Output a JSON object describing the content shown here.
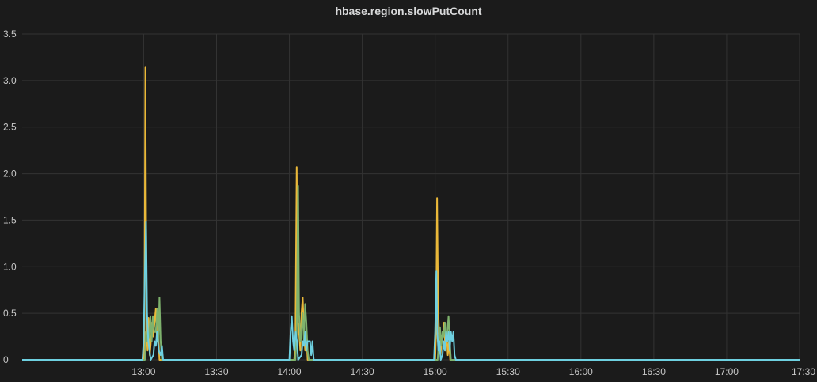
{
  "panel": {
    "title": "hbase.region.slowPutCount"
  },
  "chart_data": {
    "type": "line",
    "title": "hbase.region.slowPutCount",
    "xlabel": "",
    "ylabel": "",
    "x_unit": "minutes of day",
    "xlim": [
      730,
      1050
    ],
    "ylim": [
      0,
      3.5
    ],
    "yticks": [
      0,
      0.5,
      1.0,
      1.5,
      2.0,
      2.5,
      3.0,
      3.5
    ],
    "ytick_labels": [
      "0",
      "0.5",
      "1.0",
      "1.5",
      "2.0",
      "2.5",
      "3.0",
      "3.5"
    ],
    "xticks": [
      780,
      810,
      840,
      870,
      900,
      930,
      960,
      990,
      1020,
      1050
    ],
    "xtick_labels": [
      "13:00",
      "13:30",
      "14:00",
      "14:30",
      "15:00",
      "15:30",
      "16:00",
      "16:30",
      "17:00",
      "17:30"
    ],
    "grid": true,
    "legend": "none",
    "series": [
      {
        "color": "#eab839",
        "points": [
          [
            730,
            0
          ],
          [
            780,
            0
          ],
          [
            780.3,
            0.25
          ],
          [
            780.7,
            3.14
          ],
          [
            781.2,
            0.3
          ],
          [
            781.6,
            0.1
          ],
          [
            782,
            0.45
          ],
          [
            782.5,
            0.05
          ],
          [
            783,
            0.2
          ],
          [
            783.5,
            0.4
          ],
          [
            784,
            0.25
          ],
          [
            784.5,
            0.4
          ],
          [
            785,
            0.55
          ],
          [
            785.5,
            0.2
          ],
          [
            786,
            0.3
          ],
          [
            786.5,
            0
          ],
          [
            842,
            0
          ],
          [
            842.5,
            0.2
          ],
          [
            843,
            2.07
          ],
          [
            843.5,
            0.4
          ],
          [
            844,
            0.3
          ],
          [
            844.5,
            0.1
          ],
          [
            845,
            0.5
          ],
          [
            845.5,
            0.67
          ],
          [
            846,
            0.3
          ],
          [
            846.5,
            0.1
          ],
          [
            847,
            0.3
          ],
          [
            847.5,
            0
          ],
          [
            900,
            0
          ],
          [
            900.4,
            0.3
          ],
          [
            900.8,
            1.74
          ],
          [
            901.2,
            0.6
          ],
          [
            901.7,
            0.2
          ],
          [
            902.2,
            0.05
          ],
          [
            902.7,
            0.2
          ],
          [
            903.2,
            0.25
          ],
          [
            903.7,
            0.4
          ],
          [
            904.2,
            0.1
          ],
          [
            904.7,
            0.3
          ],
          [
            905.2,
            0.05
          ],
          [
            905.7,
            0.2
          ],
          [
            906.2,
            0
          ],
          [
            1050,
            0
          ]
        ]
      },
      {
        "color": "#7eb26d",
        "points": [
          [
            730,
            0
          ],
          [
            780.5,
            0
          ],
          [
            781,
            0.3
          ],
          [
            781.5,
            0.2
          ],
          [
            782.2,
            0.25
          ],
          [
            782.8,
            0.47
          ],
          [
            783.3,
            0.2
          ],
          [
            783.8,
            0.47
          ],
          [
            784.4,
            0.3
          ],
          [
            785,
            0.3
          ],
          [
            785.6,
            0.55
          ],
          [
            786.1,
            0.2
          ],
          [
            786.5,
            0.67
          ],
          [
            787,
            0.2
          ],
          [
            787.5,
            0
          ],
          [
            842.5,
            0
          ],
          [
            843,
            0.3
          ],
          [
            843.6,
            1.87
          ],
          [
            844,
            0.5
          ],
          [
            844.5,
            0.2
          ],
          [
            845,
            0.3
          ],
          [
            845.5,
            0.5
          ],
          [
            846,
            0.2
          ],
          [
            846.5,
            0.6
          ],
          [
            847,
            0.4
          ],
          [
            847.5,
            0.1
          ],
          [
            848,
            0
          ],
          [
            901,
            0
          ],
          [
            901.5,
            0.2
          ],
          [
            902,
            0.35
          ],
          [
            902.5,
            0.15
          ],
          [
            903,
            0.3
          ],
          [
            903.5,
            0.25
          ],
          [
            904,
            0.4
          ],
          [
            904.5,
            0.2
          ],
          [
            905,
            0.3
          ],
          [
            905.5,
            0.47
          ],
          [
            906,
            0.2
          ],
          [
            906.5,
            0
          ],
          [
            1050,
            0
          ]
        ]
      },
      {
        "color": "#6ed0e0",
        "points": [
          [
            730,
            0
          ],
          [
            779.5,
            0
          ],
          [
            780,
            0.2
          ],
          [
            780.5,
            0.95
          ],
          [
            781,
            1.48
          ],
          [
            781.4,
            0.5
          ],
          [
            781.9,
            0.2
          ],
          [
            782.4,
            0.1
          ],
          [
            782.9,
            0
          ],
          [
            784,
            0.05
          ],
          [
            784.5,
            0.2
          ],
          [
            785,
            0.15
          ],
          [
            785.5,
            0.3
          ],
          [
            786.2,
            0.1
          ],
          [
            787,
            0.05
          ],
          [
            787.5,
            0.15
          ],
          [
            788,
            0
          ],
          [
            840,
            0
          ],
          [
            840.5,
            0.3
          ],
          [
            841,
            0.47
          ],
          [
            841.5,
            0.2
          ],
          [
            842,
            0.1
          ],
          [
            842.6,
            0.3
          ],
          [
            843.1,
            0.2
          ],
          [
            843.6,
            0
          ],
          [
            845,
            0.05
          ],
          [
            845.5,
            0.2
          ],
          [
            846,
            0.15
          ],
          [
            846.5,
            0.3
          ],
          [
            847,
            0.1
          ],
          [
            847.5,
            0.2
          ],
          [
            848,
            0.2
          ],
          [
            848.5,
            0.2
          ],
          [
            849,
            0.05
          ],
          [
            849.5,
            0.2
          ],
          [
            850,
            0
          ],
          [
            899.5,
            0
          ],
          [
            900,
            0.3
          ],
          [
            900.5,
            0.95
          ],
          [
            900.9,
            0.3
          ],
          [
            901.3,
            0.1
          ],
          [
            901.8,
            0.2
          ],
          [
            902.3,
            0
          ],
          [
            903,
            0.05
          ],
          [
            903.5,
            0.2
          ],
          [
            904,
            0.1
          ],
          [
            904.5,
            0.3
          ],
          [
            905,
            0.2
          ],
          [
            905.5,
            0.3
          ],
          [
            906,
            0.1
          ],
          [
            906.5,
            0.3
          ],
          [
            907,
            0.2
          ],
          [
            907.5,
            0.3
          ],
          [
            908,
            0.05
          ],
          [
            908.5,
            0
          ],
          [
            1050,
            0
          ]
        ]
      }
    ]
  }
}
